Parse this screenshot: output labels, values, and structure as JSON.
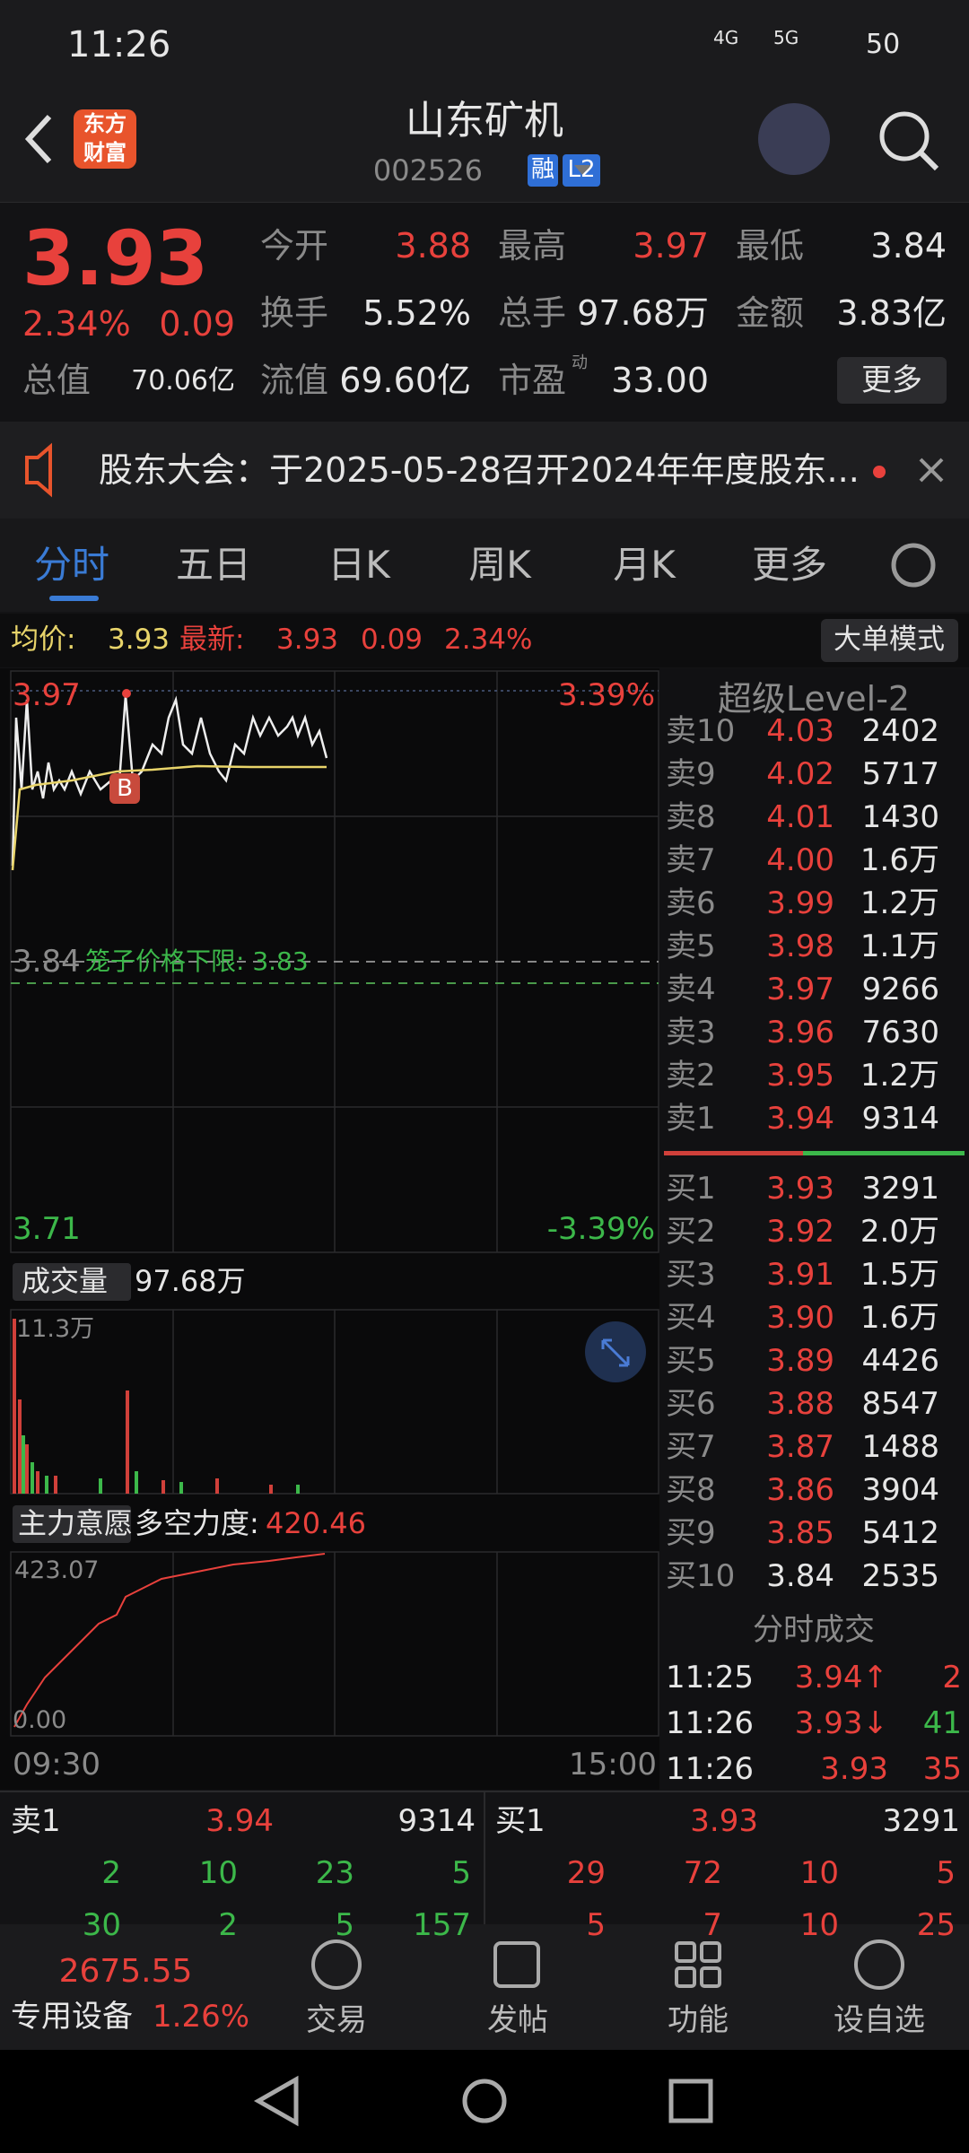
{
  "status_bar": {
    "time": "11:26",
    "network1": "4G",
    "network2": "5G",
    "battery": "50"
  },
  "header": {
    "logo_line1": "东方",
    "logo_line2": "财富",
    "title": "山东矿机",
    "code": "002526",
    "tag1": "融",
    "tag2": "L2"
  },
  "quote": {
    "price": "3.93",
    "change_pct": "2.34%",
    "change": "0.09",
    "fields": [
      {
        "label": "今开",
        "value": "3.88"
      },
      {
        "label": "最高",
        "value": "3.97"
      },
      {
        "label": "最低",
        "value": "3.84"
      },
      {
        "label": "换手",
        "value": "5.52%"
      },
      {
        "label": "总手",
        "value": "97.68万"
      },
      {
        "label": "金额",
        "value": "3.83亿"
      },
      {
        "label": "总值",
        "value": "70.06亿"
      },
      {
        "label": "流值",
        "value": "69.60亿"
      },
      {
        "label": "市盈",
        "value": "33.00",
        "sup": "动"
      }
    ],
    "more": "更多"
  },
  "notice": "股东大会：于2025-05-28召开2024年年度股东...",
  "tabs": [
    "分时",
    "五日",
    "日K",
    "周K",
    "月K",
    "更多"
  ],
  "info_bar": {
    "avg_label": "均价:",
    "avg": "3.93",
    "latest_label": "最新:",
    "latest": "3.93",
    "change": "0.09",
    "pct": "2.34%",
    "mode": "大单模式"
  },
  "chart": {
    "top_price": "3.97",
    "top_pct": "3.39%",
    "mid_price": "3.84",
    "limit_label": "笼子价格下限: 3.83",
    "bottom_price": "3.71",
    "bottom_pct": "-3.39%",
    "marker": "B",
    "volume_label": "成交量",
    "volume": "97.68万",
    "vol_max": "11.3万",
    "indicator_label": "主力意愿",
    "force_label": "多空力度:",
    "force": "420.46",
    "ind_max": "423.07",
    "ind_min": "0.00",
    "time_start": "09:30",
    "time_end": "15:00"
  },
  "level2": {
    "title": "超级Level-2",
    "asks": [
      [
        "卖10",
        "4.03",
        "2402"
      ],
      [
        "卖9",
        "4.02",
        "5717"
      ],
      [
        "卖8",
        "4.01",
        "1430"
      ],
      [
        "卖7",
        "4.00",
        "1.6万"
      ],
      [
        "卖6",
        "3.99",
        "1.2万"
      ],
      [
        "卖5",
        "3.98",
        "1.1万"
      ],
      [
        "卖4",
        "3.97",
        "9266"
      ],
      [
        "卖3",
        "3.96",
        "7630"
      ],
      [
        "卖2",
        "3.95",
        "1.2万"
      ],
      [
        "卖1",
        "3.94",
        "9314"
      ]
    ],
    "bids": [
      [
        "买1",
        "3.93",
        "3291"
      ],
      [
        "买2",
        "3.92",
        "2.0万"
      ],
      [
        "买3",
        "3.91",
        "1.5万"
      ],
      [
        "买4",
        "3.90",
        "1.6万"
      ],
      [
        "买5",
        "3.89",
        "4426"
      ],
      [
        "买6",
        "3.88",
        "8547"
      ],
      [
        "买7",
        "3.87",
        "1488"
      ],
      [
        "买8",
        "3.86",
        "3904"
      ],
      [
        "买9",
        "3.85",
        "5412"
      ],
      [
        "买10",
        "3.84",
        "2535"
      ]
    ],
    "trades_title": "分时成交",
    "trades": [
      [
        "11:25",
        "3.94↑",
        "2"
      ],
      [
        "11:26",
        "3.93↓",
        "41"
      ],
      [
        "11:26",
        "3.93",
        "35"
      ]
    ]
  },
  "queue": {
    "sell": {
      "label": "卖1",
      "price": "3.94",
      "volume": "9314",
      "orders": [
        "2",
        "10",
        "23",
        "5",
        "30",
        "2",
        "5",
        "157"
      ]
    },
    "buy": {
      "label": "买1",
      "price": "3.93",
      "volume": "3291",
      "orders": [
        "29",
        "72",
        "10",
        "5",
        "5",
        "7",
        "10",
        "25"
      ]
    }
  },
  "bottom_nav": {
    "index_value": "2675.55",
    "index_name": "专用设备",
    "index_pct": "1.26%",
    "items": [
      "交易",
      "发帖",
      "功能",
      "设自选"
    ]
  }
}
